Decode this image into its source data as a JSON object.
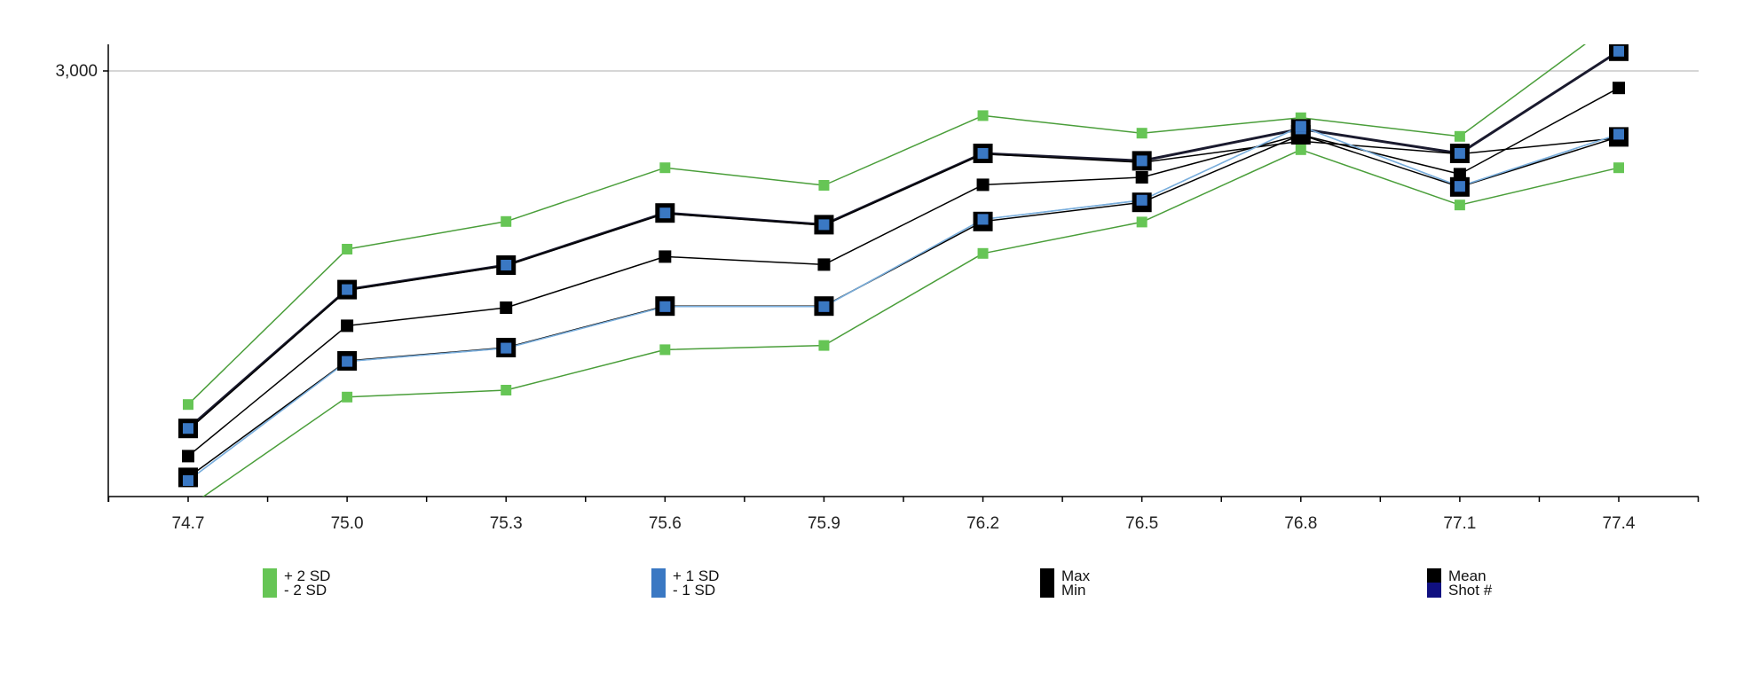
{
  "chart_data": {
    "type": "line",
    "title": "",
    "xlabel": "",
    "ylabel": "",
    "x": [
      74.7,
      75.0,
      75.3,
      75.6,
      75.9,
      76.2,
      76.5,
      76.8,
      77.1,
      77.4
    ],
    "x_tick_labels": [
      "74.7",
      "75.0",
      "75.3",
      "75.6",
      "75.9",
      "76.2",
      "76.5",
      "76.8",
      "77.1",
      "77.4"
    ],
    "xlim": [
      74.55,
      77.55
    ],
    "y_tick_labels": [
      "3,000"
    ],
    "y_ticks": [
      3000
    ],
    "ylim": [
      2200,
      3050
    ],
    "grid": "horizontal",
    "legend_position": "bottom",
    "series": [
      {
        "key": "plus2sd",
        "name": "+ 2 SD",
        "color": "#66c555",
        "line_color": "#4a9e3a",
        "line_width": 1.5,
        "marker": "square-small",
        "values": [
          2373,
          2665,
          2717,
          2818,
          2785,
          2916,
          2883,
          2912,
          2877,
          3097
        ]
      },
      {
        "key": "plus1sd",
        "name": "+ 1 SD",
        "color": "#3a78c3",
        "line_color": "#1a1a2e",
        "line_width": 3,
        "marker": "square-large",
        "values": [
          2328,
          2589,
          2635,
          2733,
          2711,
          2845,
          2831,
          2891,
          2845,
          3037
        ]
      },
      {
        "key": "max",
        "name": "Max",
        "color": "#000000",
        "line_color": "#000000",
        "line_width": 1.5,
        "marker": "square-medium",
        "values": [
          2276,
          2521,
          2555,
          2651,
          2636,
          2786,
          2800,
          2880,
          2806,
          2968
        ]
      },
      {
        "key": "mean",
        "name": "Mean",
        "color": "#000000",
        "line_color": "#000000",
        "line_width": 1.5,
        "marker": "square-large",
        "values": [
          2236,
          2455,
          2480,
          2558,
          2558,
          2717,
          2753,
          2880,
          2782,
          2876
        ]
      },
      {
        "key": "shotnum",
        "name": "Shot #",
        "color": "#101080",
        "line_color": "#7aaedc",
        "line_width": 1.5,
        "marker": "square-small",
        "values": [
          2230,
          2454,
          2479,
          2557,
          2557,
          2721,
          2757,
          2896,
          2783,
          2881
        ]
      },
      {
        "key": "min",
        "name": "Min",
        "color": "#000000",
        "line_color": "#000000",
        "line_width": 1.5,
        "marker": "none",
        "values": [
          2325,
          2588,
          2634,
          2732,
          2710,
          2844,
          2828,
          2868,
          2844,
          2874
        ]
      },
      {
        "key": "minus1sd",
        "name": "- 1 SD",
        "color": "#3a78c3",
        "line_color": "#7aaedc",
        "line_width": 1.5,
        "marker": "none",
        "values": [
          2230,
          2454,
          2479,
          2557,
          2557,
          2721,
          2757,
          2896,
          2783,
          2881
        ]
      },
      {
        "key": "minus2sd",
        "name": "- 2 SD",
        "color": "#66c555",
        "line_color": "#4a9e3a",
        "line_width": 1.5,
        "marker": "square-small",
        "values": [
          2180,
          2387,
          2400,
          2476,
          2484,
          2657,
          2716,
          2852,
          2748,
          2818
        ]
      }
    ],
    "legend": [
      {
        "label": "+ 2 SD",
        "color": "#66c555"
      },
      {
        "label": "- 2 SD",
        "color": "#66c555"
      },
      {
        "label": "+ 1 SD",
        "color": "#3a78c3"
      },
      {
        "label": "- 1 SD",
        "color": "#3a78c3"
      },
      {
        "label": "Max",
        "color": "#000000"
      },
      {
        "label": "Min",
        "color": "#000000"
      },
      {
        "label": "Mean",
        "color": "#000000"
      },
      {
        "label": "Shot #",
        "color": "#101080"
      }
    ]
  }
}
